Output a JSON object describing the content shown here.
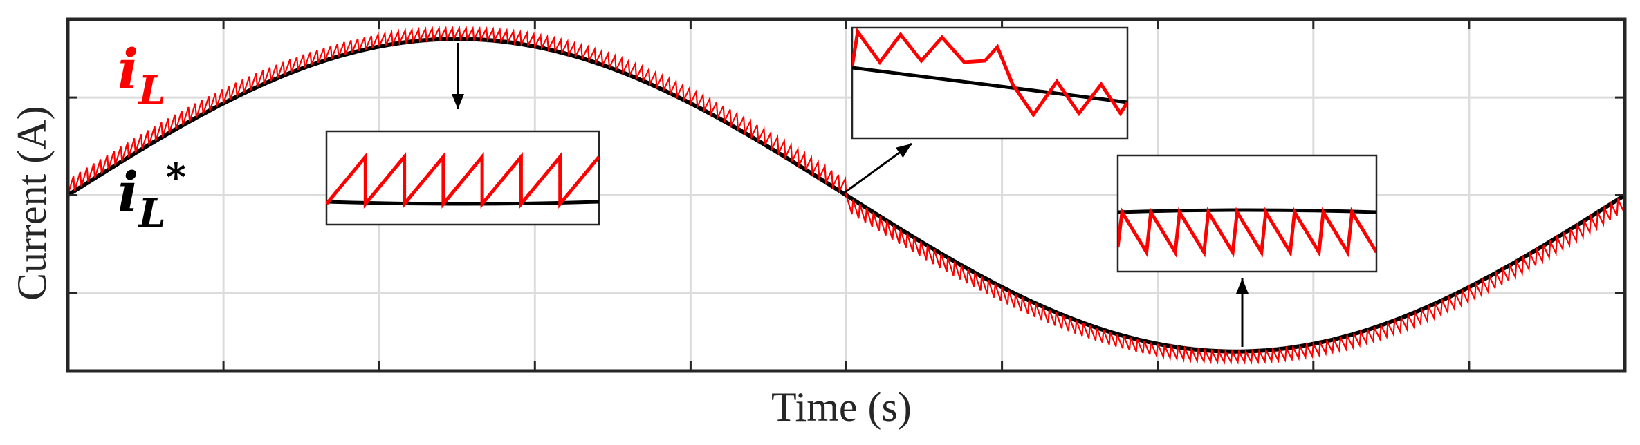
{
  "chart_data": {
    "type": "line",
    "title": "",
    "xlabel": "Time (s)",
    "ylabel": "Current (A)",
    "xlim": [
      0,
      1
    ],
    "ylim": [
      -1.8,
      1.8
    ],
    "grid": true,
    "tick_labels_shown": false,
    "x_ticks": [
      0.1,
      0.2,
      0.3,
      0.4,
      0.5,
      0.6,
      0.7,
      0.8,
      0.9
    ],
    "y_ticks": [
      -1,
      0,
      1
    ],
    "series": [
      {
        "name": "i_L*",
        "role": "reference current (sinusoidal)",
        "color": "#000000",
        "amplitude": 1.6,
        "zero_crossings_x": [
          0.0,
          0.5,
          1.0
        ],
        "peak_x": 0.25,
        "trough_x": 0.75
      },
      {
        "name": "i_L",
        "role": "inductor current (sawtooth ripple around reference)",
        "color": "#ff0000",
        "follows": "i_L*",
        "ripple": "sawtooth",
        "ripple_position": "above reference in positive half-cycle, below reference in negative half-cycle"
      }
    ],
    "legend": {
      "placement": "left",
      "entries": [
        {
          "base": "i",
          "sub": "L",
          "sup": "",
          "color": "#ff0000"
        },
        {
          "base": "i",
          "sub": "L",
          "sup": "*",
          "color": "#000000"
        }
      ]
    },
    "insets": [
      {
        "zoom_at": "peak",
        "near_x": 0.25,
        "content": "sawtooth ripple above the reference"
      },
      {
        "zoom_at": "zero crossing (falling)",
        "near_x": 0.5,
        "content": "ripple crossing the reference"
      },
      {
        "zoom_at": "trough",
        "near_x": 0.75,
        "content": "sawtooth ripple below the reference"
      }
    ]
  }
}
